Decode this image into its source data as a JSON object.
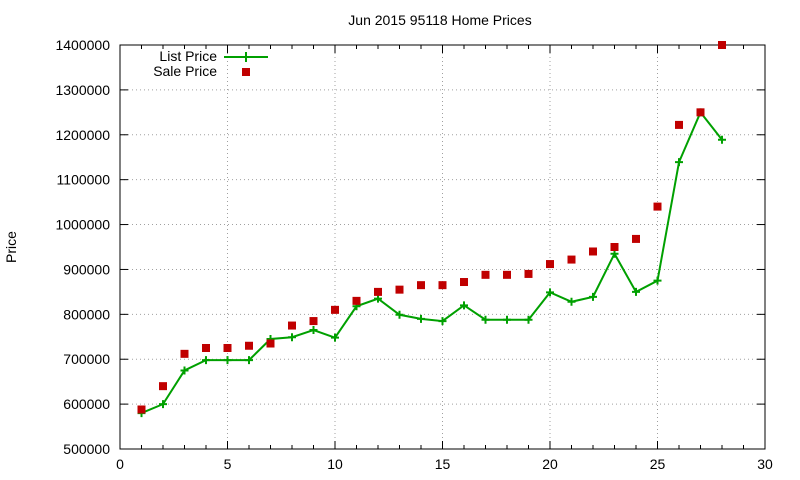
{
  "chart_data": {
    "type": "line",
    "title": "Jun 2015 95118 Home Prices",
    "xlabel": "",
    "ylabel": "Price",
    "xlim": [
      0,
      30
    ],
    "ylim": [
      500000,
      1400000
    ],
    "xticks": [
      "0",
      "5",
      "10",
      "15",
      "20",
      "25",
      "30"
    ],
    "yticks": [
      "500000",
      "600000",
      "700000",
      "800000",
      "900000",
      "1000000",
      "1100000",
      "1200000",
      "1300000",
      "1400000"
    ],
    "grid": true,
    "legend_position": "top-left",
    "series": [
      {
        "name": "List Price",
        "style": "line+cross",
        "color": "#00a000",
        "x": [
          1,
          2,
          3,
          4,
          5,
          6,
          7,
          8,
          9,
          10,
          11,
          12,
          13,
          14,
          15,
          16,
          17,
          18,
          19,
          20,
          21,
          22,
          23,
          24,
          25,
          26,
          27,
          28
        ],
        "values": [
          580000,
          600000,
          675000,
          698000,
          698000,
          698000,
          745000,
          749000,
          765000,
          748000,
          818000,
          835000,
          799000,
          790000,
          785000,
          820000,
          788000,
          788000,
          788000,
          849000,
          828000,
          839000,
          935000,
          850000,
          875000,
          1139000,
          1250000,
          1189000
        ]
      },
      {
        "name": "Sale Price",
        "style": "square-markers",
        "color": "#c00000",
        "x": [
          1,
          2,
          3,
          4,
          5,
          6,
          7,
          8,
          9,
          10,
          11,
          12,
          13,
          14,
          15,
          16,
          17,
          18,
          19,
          20,
          21,
          22,
          23,
          24,
          25,
          26,
          27,
          28
        ],
        "values": [
          588000,
          640000,
          712000,
          725000,
          725000,
          730000,
          735000,
          775000,
          785000,
          810000,
          830000,
          850000,
          855000,
          865000,
          865000,
          872000,
          888000,
          888000,
          890000,
          912000,
          922000,
          940000,
          950000,
          968000,
          1040000,
          1222000,
          1250000,
          1400000
        ]
      }
    ]
  }
}
